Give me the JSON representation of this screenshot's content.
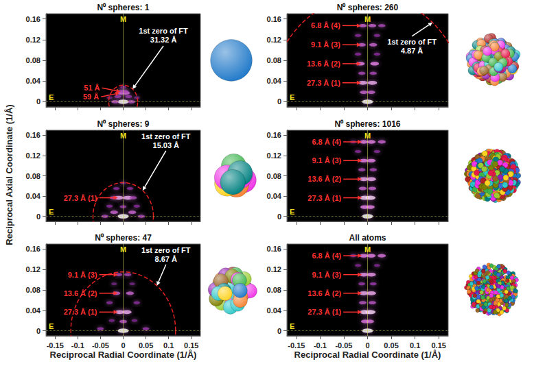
{
  "ylabel": "Reciprocal Axial Coordinate (1/Å)",
  "xlabel": "Reciprocal Radial Coordinate (1/Å)",
  "chart_data": [
    {
      "type": "scatter",
      "title": "N⁰ spheres: 1",
      "spheres": 1,
      "xlim": [
        -0.17,
        0.17
      ],
      "ylim": [
        -0.01,
        0.17
      ],
      "xticks": [
        -0.15,
        -0.1,
        -0.05,
        0,
        0.05,
        0.1,
        0.15
      ],
      "yticks": [
        0,
        0.04,
        0.08,
        0.12,
        0.16
      ],
      "grid": false,
      "tick_labels": "y",
      "meridian_label": "M",
      "equator_label": "E",
      "spots": [
        [
          0,
          0,
          1
        ],
        [
          -0.018,
          0,
          0.55
        ],
        [
          0.018,
          0,
          0.55
        ],
        [
          -0.006,
          0.0169,
          0.6
        ],
        [
          0.006,
          0.0169,
          0.6
        ],
        [
          -0.004,
          0.0196,
          0.5
        ],
        [
          0.004,
          0.0196,
          0.5
        ],
        [
          0,
          0.028,
          0.35
        ],
        [
          -0.03,
          0.008,
          0.3
        ],
        [
          0.03,
          0.008,
          0.3
        ],
        [
          -0.012,
          0.01,
          0.45
        ],
        [
          0.012,
          0.01,
          0.45
        ]
      ],
      "first_zero": {
        "label": "1st zero of FT",
        "value_label": "31.32 Å",
        "radius": 0.0319
      },
      "annotations": [
        {
          "text": "51 Å",
          "x": -0.006,
          "y": 0.0196
        },
        {
          "text": "59 Å",
          "x": -0.008,
          "y": 0.0169
        }
      ]
    },
    {
      "type": "scatter",
      "title": "N⁰ spheres: 9",
      "spheres": 9,
      "xlim": [
        -0.17,
        0.17
      ],
      "ylim": [
        -0.01,
        0.17
      ],
      "xticks": [
        -0.15,
        -0.1,
        -0.05,
        0,
        0.05,
        0.1,
        0.15
      ],
      "yticks": [
        0,
        0.04,
        0.08,
        0.12,
        0.16
      ],
      "grid": false,
      "tick_labels": "y",
      "meridian_label": "M",
      "equator_label": "E",
      "spots": [
        [
          0,
          0,
          1
        ],
        [
          -0.04,
          0,
          0.5
        ],
        [
          0.04,
          0,
          0.5
        ],
        [
          -0.02,
          0.008,
          0.6
        ],
        [
          0.02,
          0.008,
          0.6
        ],
        [
          0,
          0.019,
          0.45
        ],
        [
          -0.03,
          0.02,
          0.4
        ],
        [
          0.03,
          0.02,
          0.4
        ],
        [
          -0.01,
          0.0366,
          0.8
        ],
        [
          0.01,
          0.0366,
          0.8
        ],
        [
          -0.022,
          0.0366,
          0.5
        ],
        [
          0.022,
          0.0366,
          0.5
        ],
        [
          -0.015,
          0.055,
          0.4
        ],
        [
          0.015,
          0.055,
          0.4
        ],
        [
          0,
          0.066,
          0.3
        ]
      ],
      "first_zero": {
        "label": "1st zero of FT",
        "value_label": "15.03 Å",
        "radius": 0.0665
      },
      "annotations": [
        {
          "text": "27.3 Å (1)",
          "x": -0.012,
          "y": 0.0366
        }
      ]
    },
    {
      "type": "scatter",
      "title": "N⁰ spheres: 47",
      "spheres": 47,
      "xlim": [
        -0.17,
        0.17
      ],
      "ylim": [
        -0.01,
        0.17
      ],
      "xticks": [
        -0.15,
        -0.1,
        -0.05,
        0,
        0.05,
        0.1,
        0.15
      ],
      "yticks": [
        0,
        0.04,
        0.08,
        0.12,
        0.16
      ],
      "grid": false,
      "meridian_label": "M",
      "equator_label": "E",
      "spots": [
        [
          0,
          0,
          1
        ],
        [
          -0.05,
          0.004,
          0.45
        ],
        [
          0.05,
          0.004,
          0.45
        ],
        [
          0,
          0.018,
          0.55
        ],
        [
          -0.025,
          0.02,
          0.35
        ],
        [
          0.025,
          0.02,
          0.35
        ],
        [
          -0.008,
          0.0366,
          0.8
        ],
        [
          0.008,
          0.0366,
          0.8
        ],
        [
          -0.03,
          0.055,
          0.4
        ],
        [
          0.03,
          0.055,
          0.4
        ],
        [
          -0.015,
          0.0735,
          0.6
        ],
        [
          0.015,
          0.0735,
          0.6
        ],
        [
          -0.02,
          0.092,
          0.3
        ],
        [
          0.02,
          0.092,
          0.3
        ],
        [
          -0.01,
          0.11,
          0.5
        ],
        [
          0.01,
          0.11,
          0.5
        ]
      ],
      "first_zero": {
        "label": "1st zero of FT",
        "value_label": "8.67 Å",
        "radius": 0.1153
      },
      "annotations": [
        {
          "text": "9.1 Å (3)",
          "x": -0.012,
          "y": 0.11
        },
        {
          "text": "13.6 Å (2)",
          "x": -0.012,
          "y": 0.0735
        },
        {
          "text": "27.3 Å (1)",
          "x": -0.012,
          "y": 0.0366
        }
      ]
    },
    {
      "type": "scatter",
      "title": "N⁰ spheres: 260",
      "spheres": 260,
      "xlim": [
        -0.17,
        0.17
      ],
      "ylim": [
        -0.01,
        0.17
      ],
      "xticks": [
        -0.15,
        -0.1,
        -0.05,
        0,
        0.05,
        0.1,
        0.15
      ],
      "yticks": [
        0,
        0.04,
        0.08,
        0.12,
        0.16
      ],
      "grid": false,
      "tick_labels": "y",
      "meridian_label": "M",
      "equator_label": "E",
      "spots": [
        [
          0,
          0,
          1
        ],
        [
          -0.008,
          0.0183,
          0.6
        ],
        [
          0.008,
          0.0183,
          0.6
        ],
        [
          -0.01,
          0.0366,
          0.8
        ],
        [
          0.01,
          0.0366,
          0.8
        ],
        [
          -0.012,
          0.055,
          0.5
        ],
        [
          0.012,
          0.055,
          0.5
        ],
        [
          -0.015,
          0.0735,
          0.7
        ],
        [
          0.015,
          0.0735,
          0.7
        ],
        [
          -0.02,
          0.092,
          0.4
        ],
        [
          0.02,
          0.092,
          0.4
        ],
        [
          -0.012,
          0.11,
          0.6
        ],
        [
          0.012,
          0.11,
          0.6
        ],
        [
          -0.02,
          0.128,
          0.4
        ],
        [
          0.02,
          0.128,
          0.4
        ],
        [
          -0.01,
          0.147,
          0.6
        ],
        [
          0.01,
          0.147,
          0.6
        ],
        [
          0.03,
          0.147,
          0.5
        ]
      ],
      "first_zero": {
        "label": "1st zero of FT",
        "value_label": "4.87 Å",
        "radius": 0.2053
      },
      "annotations": [
        {
          "text": "6.8 Å (4)",
          "x": -0.014,
          "y": 0.147
        },
        {
          "text": "9.1 Å (3)",
          "x": -0.014,
          "y": 0.11
        },
        {
          "text": "13.6 Å (2)",
          "x": -0.014,
          "y": 0.0735
        },
        {
          "text": "27.3 Å (1)",
          "x": -0.014,
          "y": 0.0366
        }
      ]
    },
    {
      "type": "scatter",
      "title": "N⁰ spheres: 1016",
      "spheres": 1016,
      "xlim": [
        -0.17,
        0.17
      ],
      "ylim": [
        -0.01,
        0.17
      ],
      "xticks": [
        -0.15,
        -0.1,
        -0.05,
        0,
        0.05,
        0.1,
        0.15
      ],
      "yticks": [
        0,
        0.04,
        0.08,
        0.12,
        0.16
      ],
      "grid": false,
      "tick_labels": "y",
      "meridian_label": "M",
      "equator_label": "E",
      "spots": [
        [
          0,
          0,
          1
        ],
        [
          -0.006,
          0.0183,
          0.7
        ],
        [
          0.006,
          0.0183,
          0.7
        ],
        [
          -0.006,
          0.0366,
          0.9
        ],
        [
          0.006,
          0.0366,
          0.9
        ],
        [
          -0.01,
          0.055,
          0.6
        ],
        [
          0.01,
          0.055,
          0.6
        ],
        [
          -0.008,
          0.0735,
          0.8
        ],
        [
          0.008,
          0.0735,
          0.8
        ],
        [
          -0.012,
          0.092,
          0.5
        ],
        [
          0.012,
          0.092,
          0.5
        ],
        [
          -0.008,
          0.11,
          0.7
        ],
        [
          0.008,
          0.11,
          0.7
        ],
        [
          -0.02,
          0.128,
          0.4
        ],
        [
          0.02,
          0.128,
          0.4
        ],
        [
          -0.008,
          0.147,
          0.7
        ],
        [
          0.008,
          0.147,
          0.7
        ],
        [
          0.03,
          0.147,
          0.6
        ],
        [
          -0.03,
          0.147,
          0.35
        ]
      ],
      "annotations": [
        {
          "text": "6.8 Å (4)",
          "x": -0.012,
          "y": 0.147
        },
        {
          "text": "9.1 Å (3)",
          "x": -0.012,
          "y": 0.11
        },
        {
          "text": "13.6 Å (2)",
          "x": -0.012,
          "y": 0.0735
        },
        {
          "text": "27.3 Å (1)",
          "x": -0.012,
          "y": 0.0366
        }
      ]
    },
    {
      "type": "scatter",
      "title": "All atoms",
      "xlim": [
        -0.17,
        0.17
      ],
      "ylim": [
        -0.01,
        0.17
      ],
      "xticks": [
        -0.15,
        -0.1,
        -0.05,
        0,
        0.05,
        0.1,
        0.15
      ],
      "yticks": [
        0,
        0.04,
        0.08,
        0.12,
        0.16
      ],
      "grid": false,
      "meridian_label": "M",
      "equator_label": "E",
      "spots": [
        [
          0,
          0,
          1
        ],
        [
          -0.005,
          0.0183,
          0.65
        ],
        [
          0.005,
          0.0183,
          0.65
        ],
        [
          -0.006,
          0.0366,
          0.9
        ],
        [
          0.006,
          0.0366,
          0.9
        ],
        [
          -0.01,
          0.055,
          0.55
        ],
        [
          0.01,
          0.055,
          0.55
        ],
        [
          -0.008,
          0.0735,
          0.8
        ],
        [
          0.008,
          0.0735,
          0.8
        ],
        [
          -0.012,
          0.092,
          0.45
        ],
        [
          0.012,
          0.092,
          0.45
        ],
        [
          -0.008,
          0.11,
          0.75
        ],
        [
          0.008,
          0.11,
          0.75
        ],
        [
          -0.02,
          0.128,
          0.35
        ],
        [
          0.02,
          0.128,
          0.35
        ],
        [
          -0.008,
          0.147,
          0.7
        ],
        [
          0.008,
          0.147,
          0.7
        ],
        [
          0.03,
          0.147,
          0.65
        ],
        [
          -0.03,
          0.147,
          0.4
        ]
      ],
      "annotations": [
        {
          "text": "6.8 Å (4)",
          "x": -0.012,
          "y": 0.147
        },
        {
          "text": "9.1 Å (3)",
          "x": -0.012,
          "y": 0.11
        },
        {
          "text": "13.6 Å (2)",
          "x": -0.012,
          "y": 0.0735
        },
        {
          "text": "27.3 Å (1)",
          "x": -0.012,
          "y": 0.0366
        }
      ]
    }
  ]
}
